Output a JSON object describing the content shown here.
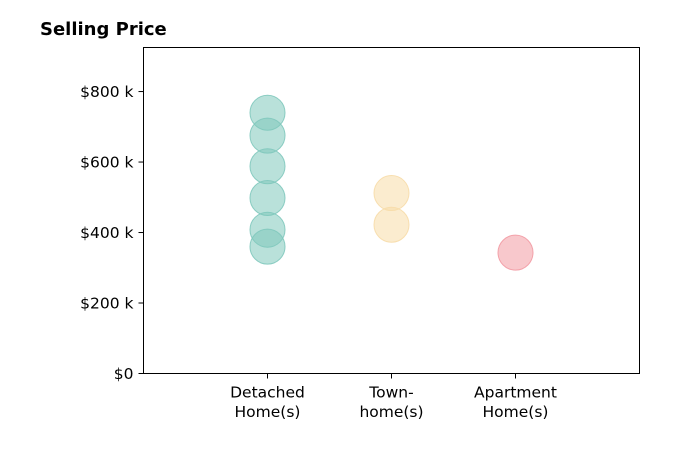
{
  "chart_data": {
    "type": "scatter",
    "title": "Selling Price",
    "xlabel": "",
    "ylabel": "",
    "categories": [
      [
        "Detached",
        "Home(s)"
      ],
      [
        "Town-",
        "home(s)"
      ],
      [
        "Apartment",
        "Home(s)"
      ]
    ],
    "y_ticks": [
      {
        "value": 0,
        "label": "$0"
      },
      {
        "value": 200000,
        "label": "$200 k"
      },
      {
        "value": 400000,
        "label": "$400 k"
      },
      {
        "value": 600000,
        "label": "$600 k"
      },
      {
        "value": 800000,
        "label": "$800 k"
      }
    ],
    "ylim": [
      0,
      925000
    ],
    "xlim": [
      0,
      4
    ],
    "grid": false,
    "series": [
      {
        "category_index": 0,
        "color": "#7fc8bc",
        "values": [
          740000,
          675000,
          588000,
          498000,
          408000,
          360000
        ]
      },
      {
        "category_index": 1,
        "color": "#f7dca8",
        "values": [
          512000,
          422000
        ]
      },
      {
        "category_index": 2,
        "color": "#f29aa3",
        "values": [
          343000
        ]
      }
    ]
  }
}
